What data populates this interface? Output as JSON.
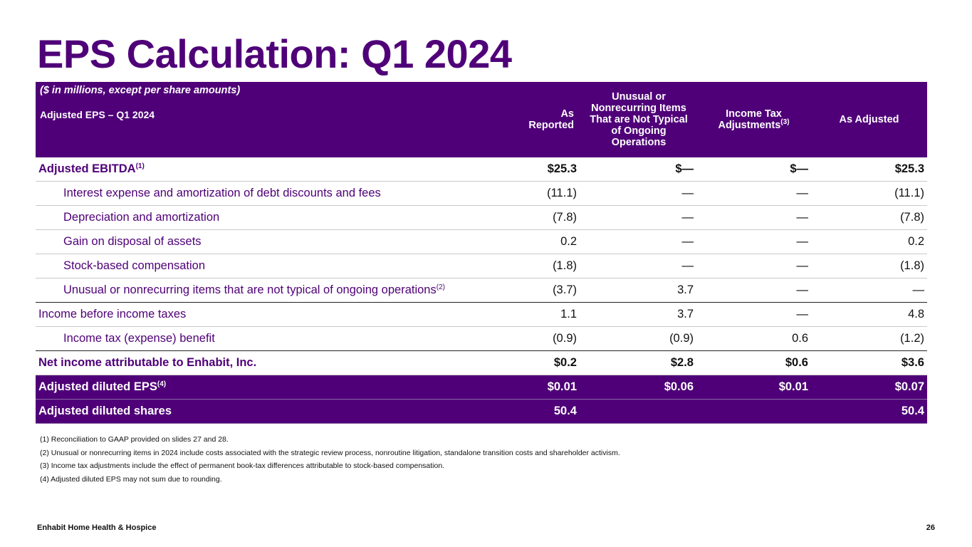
{
  "title": "EPS Calculation: Q1 2024",
  "table": {
    "units_note": "($ in millions, except per share amounts)",
    "row_header": "Adjusted EPS – Q1 2024",
    "columns": {
      "as_reported": "As Reported",
      "unusual": "Unusual or Nonrecurring Items That are Not Typical of Ongoing Operations",
      "income_tax": "Income Tax Adjustments",
      "income_tax_sup": "(3)",
      "as_adjusted": "As Adjusted"
    },
    "rows": [
      {
        "label": "Adjusted EBITDA",
        "sup": "(1)",
        "values": [
          "$25.3",
          "$—",
          "$—",
          "$25.3"
        ]
      },
      {
        "label": "Interest expense and amortization of debt discounts and fees",
        "sup": "",
        "values": [
          "(11.1)",
          "—",
          "—",
          "(11.1)"
        ]
      },
      {
        "label": "Depreciation and amortization",
        "sup": "",
        "values": [
          "(7.8)",
          "—",
          "—",
          "(7.8)"
        ]
      },
      {
        "label": "Gain on disposal of assets",
        "sup": "",
        "values": [
          "0.2",
          "—",
          "—",
          "0.2"
        ]
      },
      {
        "label": "Stock-based compensation",
        "sup": "",
        "values": [
          "(1.8)",
          "—",
          "—",
          "(1.8)"
        ]
      },
      {
        "label": "Unusual or nonrecurring items that are not typical of ongoing operations",
        "sup": "(2)",
        "values": [
          "(3.7)",
          "3.7",
          "—",
          "—"
        ]
      },
      {
        "label": "Income before income taxes",
        "sup": "",
        "values": [
          "1.1",
          "3.7",
          "—",
          "4.8"
        ]
      },
      {
        "label": "Income tax (expense) benefit",
        "sup": "",
        "values": [
          "(0.9)",
          "(0.9)",
          "0.6",
          "(1.2)"
        ]
      },
      {
        "label": "Net income attributable to Enhabit, Inc.",
        "sup": "",
        "values": [
          "$0.2",
          "$2.8",
          "$0.6",
          "$3.6"
        ]
      },
      {
        "label": "Adjusted diluted EPS",
        "sup": "(4)",
        "values": [
          "$0.01",
          "$0.06",
          "$0.01",
          "$0.07"
        ]
      },
      {
        "label": "Adjusted diluted shares",
        "sup": "",
        "values": [
          "50.4",
          "",
          "",
          "50.4"
        ]
      }
    ]
  },
  "footnotes": [
    "(1) Reconciliation to GAAP provided on slides 27 and 28.",
    "(2) Unusual or nonrecurring items in 2024 include costs associated with the strategic review process, nonroutine litigation, standalone transition costs and shareholder activism.",
    "(3) Income tax adjustments include the effect of permanent book-tax differences attributable to stock-based compensation.",
    "(4) Adjusted diluted EPS may not sum due to rounding."
  ],
  "footer": {
    "company": "Enhabit Home Health & Hospice",
    "page_number": "26"
  },
  "colors": {
    "brand_purple": "#4f0078"
  }
}
